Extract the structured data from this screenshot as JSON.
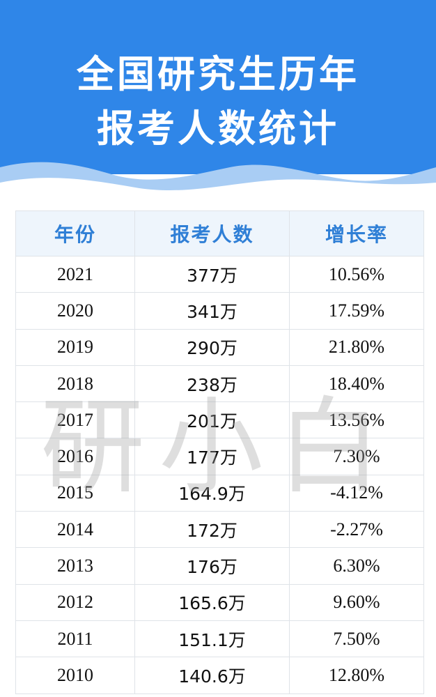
{
  "header": {
    "title_lines": [
      "全国研究生历年",
      "报考人数统计"
    ]
  },
  "watermark": "研小白",
  "table": {
    "columns": [
      "年份",
      "报考人数",
      "增长率"
    ],
    "rows": [
      [
        "2021",
        "377万",
        "10.56%"
      ],
      [
        "2020",
        "341万",
        "17.59%"
      ],
      [
        "2019",
        "290万",
        "21.80%"
      ],
      [
        "2018",
        "238万",
        "18.40%"
      ],
      [
        "2017",
        "201万",
        "13.56%"
      ],
      [
        "2016",
        "177万",
        "7.30%"
      ],
      [
        "2015",
        "164.9万",
        "-4.12%"
      ],
      [
        "2014",
        "172万",
        "-2.27%"
      ],
      [
        "2013",
        "176万",
        "6.30%"
      ],
      [
        "2012",
        "165.6万",
        "9.60%"
      ],
      [
        "2011",
        "151.1万",
        "7.50%"
      ],
      [
        "2010",
        "140.6万",
        "12.80%"
      ]
    ]
  }
}
